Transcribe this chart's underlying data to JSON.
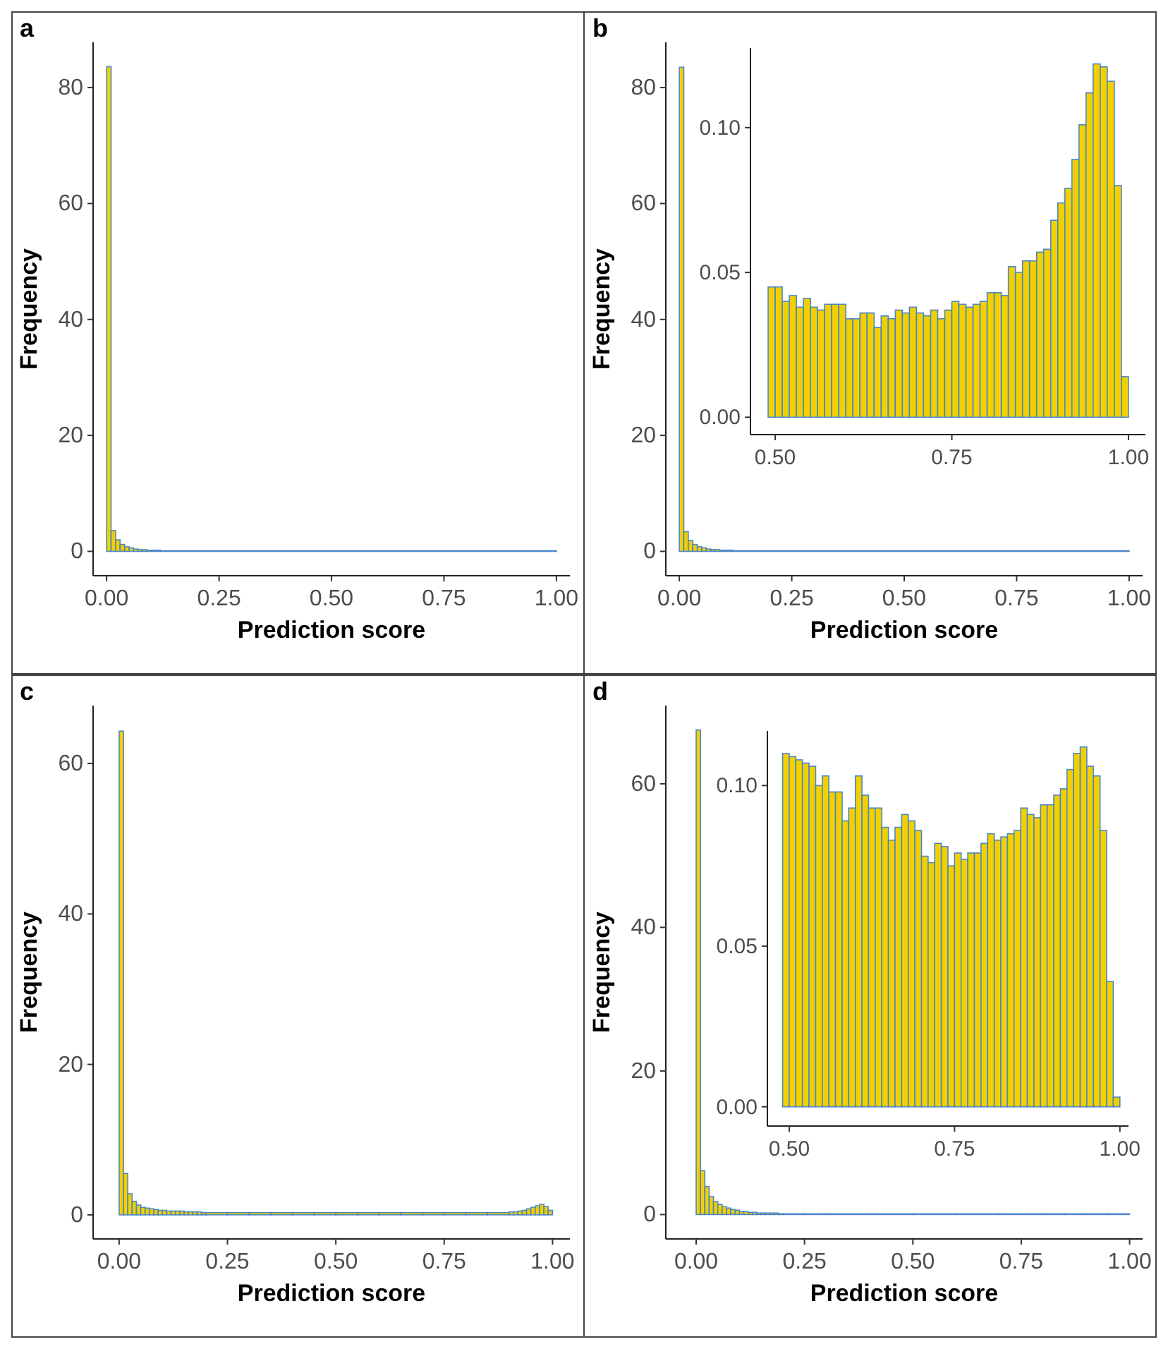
{
  "chart_data": [
    {
      "type": "histogram",
      "title": "a",
      "xlabel": "Prediction score",
      "ylabel": "Frequency",
      "color": "#f2d000",
      "xlim": [
        -0.03,
        1.03
      ],
      "ylim": [
        -4.2,
        87.8
      ],
      "xticks": [
        {
          "value": 0,
          "label": "0.00"
        },
        {
          "value": 0.25,
          "label": "0.25"
        },
        {
          "value": 0.5,
          "label": "0.50"
        },
        {
          "value": 0.75,
          "label": "0.75"
        },
        {
          "value": 1,
          "label": "1.00"
        }
      ],
      "yticks": [
        0,
        20,
        40,
        60,
        80
      ],
      "bins": [
        0,
        0.01,
        0.02,
        0.03,
        0.04,
        0.05,
        0.06,
        0.07,
        0.08,
        0.09,
        0.1,
        0.11,
        0.12,
        0.13,
        0.14,
        0.15,
        0.16,
        0.17,
        0.18,
        0.19,
        0.2,
        0.25,
        0.3,
        0.35,
        0.4,
        0.45,
        0.5,
        0.55,
        0.6,
        0.65,
        0.7,
        0.75,
        0.8,
        0.85,
        0.9,
        0.95,
        1.0
      ],
      "values": [
        83.6,
        3.6,
        2.0,
        1.2,
        0.8,
        0.6,
        0.4,
        0.3,
        0.3,
        0.2,
        0.2,
        0.2,
        0.1,
        0.1,
        0.1,
        0.1,
        0.1,
        0.1,
        0.1,
        0.1,
        0.1,
        0.1,
        0.1,
        0.1,
        0.1,
        0.1,
        0.1,
        0.1,
        0.1,
        0.1,
        0.1,
        0.1,
        0.1,
        0.1,
        0.1,
        0.1
      ]
    },
    {
      "type": "histogram",
      "title": "b",
      "xlabel": "Prediction score",
      "ylabel": "Frequency",
      "color": "#f2d000",
      "xlim": [
        -0.03,
        1.03
      ],
      "ylim": [
        -4.2,
        87.8
      ],
      "xticks": [
        {
          "value": 0,
          "label": "0.00"
        },
        {
          "value": 0.25,
          "label": "0.25"
        },
        {
          "value": 0.5,
          "label": "0.50"
        },
        {
          "value": 0.75,
          "label": "0.75"
        },
        {
          "value": 1,
          "label": "1.00"
        }
      ],
      "yticks": [
        0,
        20,
        40,
        60,
        80
      ],
      "bins": [
        0,
        0.01,
        0.02,
        0.03,
        0.04,
        0.05,
        0.06,
        0.07,
        0.08,
        0.09,
        0.1,
        0.11,
        0.12,
        0.13,
        0.14,
        0.15,
        0.16,
        0.17,
        0.18,
        0.19,
        0.2,
        0.25,
        0.3,
        0.35,
        0.4,
        0.45,
        0.5,
        0.55,
        0.6,
        0.65,
        0.7,
        0.75,
        0.8,
        0.85,
        0.9,
        0.95,
        1.0
      ],
      "values": [
        83.5,
        3.4,
        1.9,
        1.2,
        0.8,
        0.6,
        0.4,
        0.3,
        0.3,
        0.2,
        0.2,
        0.2,
        0.1,
        0.1,
        0.1,
        0.1,
        0.1,
        0.1,
        0.1,
        0.1,
        0.1,
        0.1,
        0.1,
        0.1,
        0.1,
        0.1,
        0.1,
        0.1,
        0.1,
        0.1,
        0.1,
        0.1,
        0.1,
        0.1,
        0.1,
        0.1
      ]
    },
    {
      "type": "histogram",
      "color": "#f2d000",
      "xlim": [
        0.465,
        1.024
      ],
      "ylim": [
        -0.006,
        0.1275
      ],
      "xticks": [
        {
          "value": 0.5,
          "label": "0.50"
        },
        {
          "value": 0.75,
          "label": "0.75"
        },
        {
          "value": 1,
          "label": "1.00"
        }
      ],
      "yticks": [
        {
          "value": 0,
          "label": "0.00"
        },
        {
          "value": 0.05,
          "label": "0.05"
        },
        {
          "value": 0.1,
          "label": "0.10"
        }
      ],
      "bins": [
        0.49,
        0.5,
        0.51,
        0.52,
        0.53,
        0.54,
        0.55,
        0.56,
        0.57,
        0.58,
        0.59,
        0.6,
        0.61,
        0.62,
        0.63,
        0.64,
        0.65,
        0.66,
        0.67,
        0.68,
        0.69,
        0.7,
        0.71,
        0.72,
        0.73,
        0.74,
        0.75,
        0.76,
        0.77,
        0.78,
        0.79,
        0.8,
        0.81,
        0.82,
        0.83,
        0.84,
        0.85,
        0.86,
        0.87,
        0.88,
        0.89,
        0.9,
        0.91,
        0.92,
        0.93,
        0.94,
        0.95,
        0.96,
        0.97,
        0.98,
        0.99,
        1.0
      ],
      "values": [
        0.045,
        0.045,
        0.04,
        0.042,
        0.038,
        0.041,
        0.038,
        0.037,
        0.039,
        0.039,
        0.039,
        0.034,
        0.034,
        0.036,
        0.036,
        0.031,
        0.035,
        0.034,
        0.037,
        0.036,
        0.038,
        0.036,
        0.035,
        0.037,
        0.034,
        0.037,
        0.04,
        0.039,
        0.038,
        0.039,
        0.04,
        0.043,
        0.043,
        0.042,
        0.052,
        0.05,
        0.054,
        0.054,
        0.057,
        0.058,
        0.068,
        0.074,
        0.079,
        0.089,
        0.101,
        0.112,
        0.122,
        0.121,
        0.116,
        0.08,
        0.014
      ]
    },
    {
      "type": "histogram",
      "title": "c",
      "xlabel": "Prediction score",
      "ylabel": "Frequency",
      "color": "#f2d000",
      "xlim": [
        -0.06,
        1.04
      ],
      "ylim": [
        -3.2,
        67.7
      ],
      "xticks": [
        {
          "value": 0,
          "label": "0.00"
        },
        {
          "value": 0.25,
          "label": "0.25"
        },
        {
          "value": 0.5,
          "label": "0.50"
        },
        {
          "value": 0.75,
          "label": "0.75"
        },
        {
          "value": 1,
          "label": "1.00"
        }
      ],
      "yticks": [
        0,
        20,
        40,
        60
      ],
      "bins": [
        0,
        0.01,
        0.02,
        0.03,
        0.04,
        0.05,
        0.06,
        0.07,
        0.08,
        0.09,
        0.1,
        0.11,
        0.12,
        0.13,
        0.14,
        0.15,
        0.16,
        0.17,
        0.18,
        0.19,
        0.2,
        0.25,
        0.3,
        0.35,
        0.4,
        0.45,
        0.5,
        0.55,
        0.6,
        0.65,
        0.7,
        0.75,
        0.8,
        0.85,
        0.9,
        0.91,
        0.92,
        0.93,
        0.94,
        0.95,
        0.96,
        0.97,
        0.98,
        0.99,
        1.0
      ],
      "values": [
        64.3,
        5.5,
        2.8,
        1.8,
        1.3,
        1.0,
        0.9,
        0.8,
        0.7,
        0.6,
        0.6,
        0.5,
        0.5,
        0.5,
        0.5,
        0.4,
        0.4,
        0.4,
        0.4,
        0.3,
        0.3,
        0.3,
        0.3,
        0.3,
        0.3,
        0.3,
        0.3,
        0.3,
        0.3,
        0.3,
        0.3,
        0.3,
        0.3,
        0.3,
        0.4,
        0.4,
        0.5,
        0.6,
        0.8,
        1.0,
        1.2,
        1.4,
        1.1,
        0.6
      ]
    },
    {
      "type": "histogram",
      "title": "d",
      "xlabel": "Prediction score",
      "ylabel": "Frequency",
      "color": "#f2d000",
      "xlim": [
        -0.07,
        1.03
      ],
      "ylim": [
        -3.4,
        70.9
      ],
      "xticks": [
        {
          "value": 0,
          "label": "0.00"
        },
        {
          "value": 0.25,
          "label": "0.25"
        },
        {
          "value": 0.5,
          "label": "0.50"
        },
        {
          "value": 0.75,
          "label": "0.75"
        },
        {
          "value": 1,
          "label": "1.00"
        }
      ],
      "yticks": [
        0,
        20,
        40,
        60
      ],
      "bins": [
        0,
        0.01,
        0.02,
        0.03,
        0.04,
        0.05,
        0.06,
        0.07,
        0.08,
        0.09,
        0.1,
        0.11,
        0.12,
        0.13,
        0.14,
        0.15,
        0.16,
        0.17,
        0.18,
        0.19,
        0.2,
        0.25,
        0.3,
        0.35,
        0.4,
        0.45,
        0.5,
        0.55,
        0.6,
        0.65,
        0.7,
        0.75,
        0.8,
        0.85,
        0.9,
        0.95,
        1.0
      ],
      "values": [
        67.5,
        6.1,
        3.9,
        2.5,
        1.8,
        1.4,
        1.1,
        0.9,
        0.7,
        0.6,
        0.4,
        0.4,
        0.3,
        0.3,
        0.2,
        0.2,
        0.2,
        0.2,
        0.2,
        0.1,
        0.1,
        0.1,
        0.1,
        0.1,
        0.1,
        0.1,
        0.1,
        0.1,
        0.1,
        0.1,
        0.1,
        0.1,
        0.1,
        0.1,
        0.1,
        0.1
      ]
    },
    {
      "type": "histogram",
      "color": "#f2d000",
      "xlim": [
        0.467,
        1.013
      ],
      "ylim": [
        -0.006,
        0.117
      ],
      "xticks": [
        {
          "value": 0.5,
          "label": "0.50"
        },
        {
          "value": 0.75,
          "label": "0.75"
        },
        {
          "value": 1,
          "label": "1.00"
        }
      ],
      "yticks": [
        {
          "value": 0,
          "label": "0.00"
        },
        {
          "value": 0.05,
          "label": "0.05"
        },
        {
          "value": 0.1,
          "label": "0.10"
        }
      ],
      "bins": [
        0.49,
        0.5,
        0.51,
        0.52,
        0.53,
        0.54,
        0.55,
        0.56,
        0.57,
        0.58,
        0.59,
        0.6,
        0.61,
        0.62,
        0.63,
        0.64,
        0.65,
        0.66,
        0.67,
        0.68,
        0.69,
        0.7,
        0.71,
        0.72,
        0.73,
        0.74,
        0.75,
        0.76,
        0.77,
        0.78,
        0.79,
        0.8,
        0.81,
        0.82,
        0.83,
        0.84,
        0.85,
        0.86,
        0.87,
        0.88,
        0.89,
        0.9,
        0.91,
        0.92,
        0.93,
        0.94,
        0.95,
        0.96,
        0.97,
        0.98,
        0.99,
        1.0
      ],
      "values": [
        0.11,
        0.109,
        0.108,
        0.107,
        0.106,
        0.1,
        0.103,
        0.098,
        0.098,
        0.089,
        0.093,
        0.103,
        0.097,
        0.093,
        0.093,
        0.087,
        0.083,
        0.087,
        0.091,
        0.089,
        0.086,
        0.078,
        0.076,
        0.082,
        0.081,
        0.075,
        0.079,
        0.077,
        0.079,
        0.079,
        0.082,
        0.085,
        0.083,
        0.084,
        0.085,
        0.086,
        0.093,
        0.091,
        0.09,
        0.094,
        0.094,
        0.097,
        0.099,
        0.105,
        0.11,
        0.112,
        0.106,
        0.103,
        0.086,
        0.039,
        0.003
      ]
    }
  ]
}
